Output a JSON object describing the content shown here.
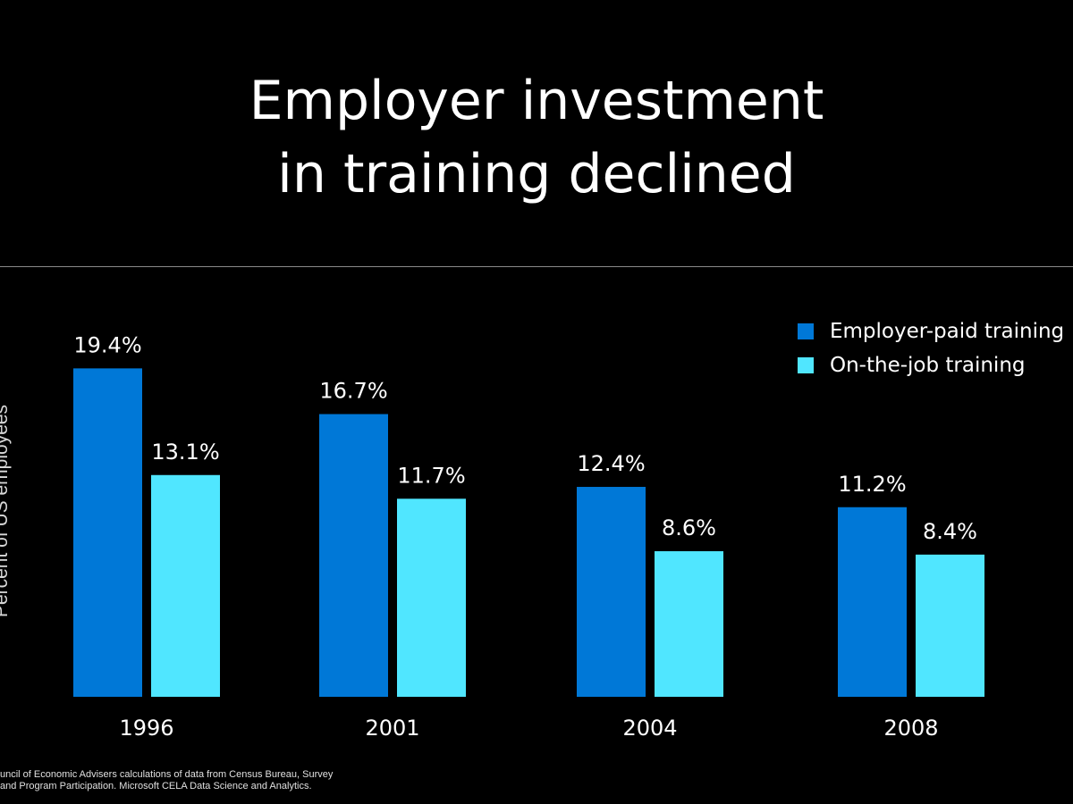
{
  "title_line1": "Employer investment",
  "title_line2": "in training declined",
  "source_line1": "uncil of Economic Advisers calculations of data from Census Bureau, Survey",
  "source_line2": "and Program Participation. Microsoft CELA Data Science and Analytics.",
  "colors": {
    "background": "#000000",
    "employer_paid": "#0078d7",
    "on_the_job": "#50e6ff",
    "divider": "#8a8a8a"
  },
  "chart_data": {
    "type": "bar",
    "title": "Employer investment in training declined",
    "ylabel": "Percent of US employees",
    "xlabel": "",
    "categories": [
      "1996",
      "2001",
      "2004",
      "2008"
    ],
    "ylim": [
      0,
      20
    ],
    "grid": false,
    "legend_position": "top-right",
    "series": [
      {
        "name": "Employer-paid training",
        "color": "#0078d7",
        "values": [
          19.4,
          16.7,
          12.4,
          11.2
        ],
        "labels": [
          "19.4%",
          "16.7%",
          "12.4%",
          "11.2%"
        ]
      },
      {
        "name": "On-the-job training",
        "color": "#50e6ff",
        "values": [
          13.1,
          11.7,
          8.6,
          8.4
        ],
        "labels": [
          "13.1%",
          "11.7%",
          "8.6%",
          "8.4%"
        ]
      }
    ]
  }
}
